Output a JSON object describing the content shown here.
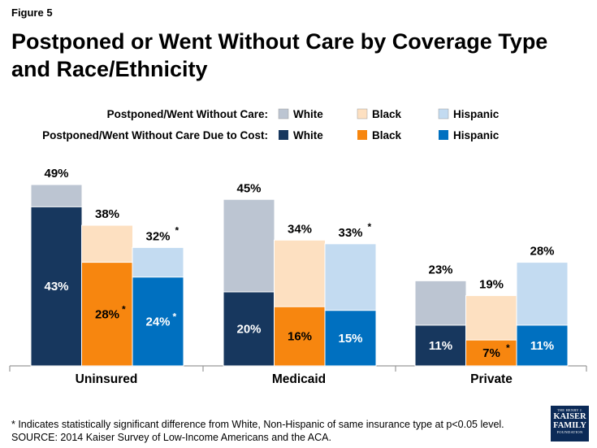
{
  "figure_label": "Figure 5",
  "title": "Postponed or Went Without Care by Coverage Type and Race/Ethnicity",
  "footnote": {
    "line1": "* Indicates statistically significant difference from White, Non-Hispanic of same insurance type at p<0.05 level.",
    "line2": "SOURCE: 2014 Kaiser Survey of Low-Income Americans and the ACA."
  },
  "logo": {
    "line1": "THE HENRY J.",
    "line2": "KAISER",
    "line3": "FAMILY",
    "line4": "FOUNDATION"
  },
  "colors": {
    "white_total": "#bcc5d2",
    "black_total": "#fde0c1",
    "hispanic_total": "#c3dbf1",
    "white_cost": "#17375e",
    "black_cost": "#f7860f",
    "hispanic_cost": "#0070c0",
    "axis": "#999999",
    "bar_border": "#ffffff"
  },
  "chart_data": {
    "type": "bar",
    "stacked": "overlay",
    "title": "Postponed or Went Without Care by Coverage Type and Race/Ethnicity",
    "categories": [
      "Uninsured",
      "Medicaid",
      "Private"
    ],
    "groups": [
      "White",
      "Black",
      "Hispanic"
    ],
    "ylim": [
      0,
      50
    ],
    "legend": [
      {
        "row_label": "Postponed/Went Without Care:",
        "items": [
          "White",
          "Black",
          "Hispanic"
        ]
      },
      {
        "row_label": "Postponed/Went Without Care Due to Cost:",
        "items": [
          "White",
          "Black",
          "Hispanic"
        ]
      }
    ],
    "series": [
      {
        "name": "Postponed/Went Without Care",
        "group": "White",
        "values": [
          49,
          45,
          23
        ],
        "labels": [
          "49%",
          "45%",
          "23%"
        ],
        "significant": [
          false,
          false,
          false
        ]
      },
      {
        "name": "Postponed/Went Without Care",
        "group": "Black",
        "values": [
          38,
          34,
          19
        ],
        "labels": [
          "38%",
          "34%",
          "19%"
        ],
        "significant": [
          false,
          false,
          false
        ]
      },
      {
        "name": "Postponed/Went Without Care",
        "group": "Hispanic",
        "values": [
          32,
          33,
          28
        ],
        "labels": [
          "32%",
          "33%",
          "28%"
        ],
        "significant": [
          true,
          true,
          false
        ]
      },
      {
        "name": "Postponed/Went Without Care Due to Cost",
        "group": "White",
        "values": [
          43,
          20,
          11
        ],
        "labels": [
          "43%",
          "20%",
          "11%"
        ],
        "significant": [
          false,
          false,
          false
        ]
      },
      {
        "name": "Postponed/Went Without Care Due to Cost",
        "group": "Black",
        "values": [
          28,
          16,
          7
        ],
        "labels": [
          "28%",
          "16%",
          "7%"
        ],
        "significant": [
          true,
          false,
          true
        ]
      },
      {
        "name": "Postponed/Went Without Care Due to Cost",
        "group": "Hispanic",
        "values": [
          24,
          15,
          11
        ],
        "labels": [
          "24%",
          "15%",
          "11%"
        ],
        "significant": [
          true,
          false,
          false
        ]
      }
    ],
    "significance_marker": "*"
  }
}
